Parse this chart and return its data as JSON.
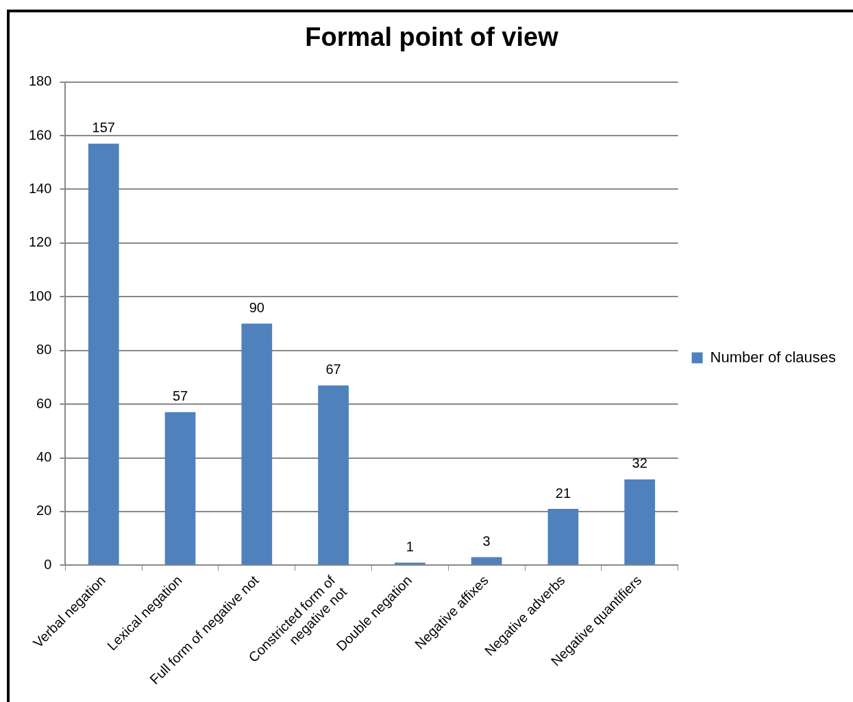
{
  "chart_data": {
    "type": "bar",
    "title": "Formal point of view",
    "categories": [
      "Verbal negation",
      "Lexical negation",
      "Full form of negative not",
      "Constricted form of negative not",
      "Double negation",
      "Negative affixes",
      "Negative adverbs",
      "Negative quantifiers"
    ],
    "series": [
      {
        "name": "Number of clauses",
        "color": "#4f81bd",
        "values": [
          157,
          57,
          90,
          67,
          1,
          3,
          21,
          32
        ]
      }
    ],
    "ylim": [
      0,
      180
    ],
    "yticks": [
      0,
      20,
      40,
      60,
      80,
      100,
      120,
      140,
      160,
      180
    ],
    "grid": "y",
    "legend": "right",
    "data_labels": true
  }
}
